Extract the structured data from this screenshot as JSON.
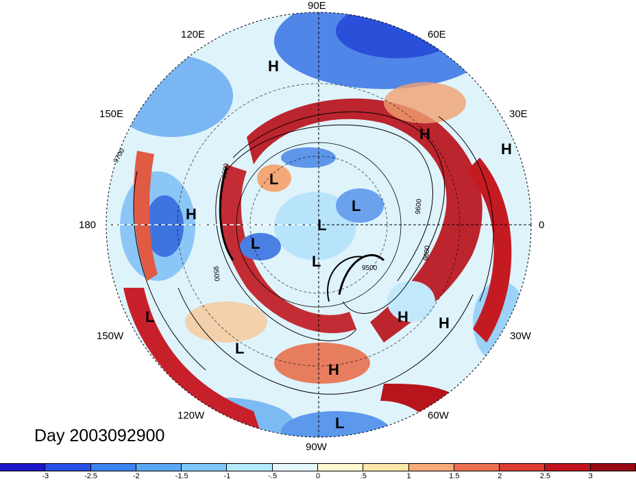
{
  "map": {
    "projection": "north-polar-stereographic",
    "longitude_labels": [
      "90E",
      "60E",
      "30E",
      "0",
      "30W",
      "60W",
      "90W",
      "120W",
      "150W",
      "180",
      "150E",
      "120E"
    ],
    "contour_labels": [
      "9600",
      "9700",
      "9500",
      "9600",
      "9600",
      "9500"
    ],
    "pressure_centers": [
      {
        "type": "H"
      },
      {
        "type": "H"
      },
      {
        "type": "H"
      },
      {
        "type": "L"
      },
      {
        "type": "L"
      },
      {
        "type": "L"
      },
      {
        "type": "L"
      },
      {
        "type": "H"
      },
      {
        "type": "L"
      },
      {
        "type": "L"
      },
      {
        "type": "H"
      },
      {
        "type": "H"
      },
      {
        "type": "L"
      },
      {
        "type": "H"
      },
      {
        "type": "H"
      },
      {
        "type": "L"
      }
    ]
  },
  "title": {
    "day_label": "Day 2003092900"
  },
  "colorbar": {
    "tick_labels": [
      "-3",
      "-2.5",
      "-2",
      "-1.5",
      "-1",
      "-.5",
      "0",
      ".5",
      "1",
      "1.5",
      "2",
      "2.5",
      "3"
    ],
    "colors": [
      "#1e14c8",
      "#2850e6",
      "#3c82f0",
      "#5aa8f5",
      "#7ec8fa",
      "#b4eafc",
      "#e6fafe",
      "#fffad2",
      "#fde6a8",
      "#f5aa78",
      "#eb7050",
      "#dc3c32",
      "#c0141e",
      "#960a14"
    ]
  }
}
